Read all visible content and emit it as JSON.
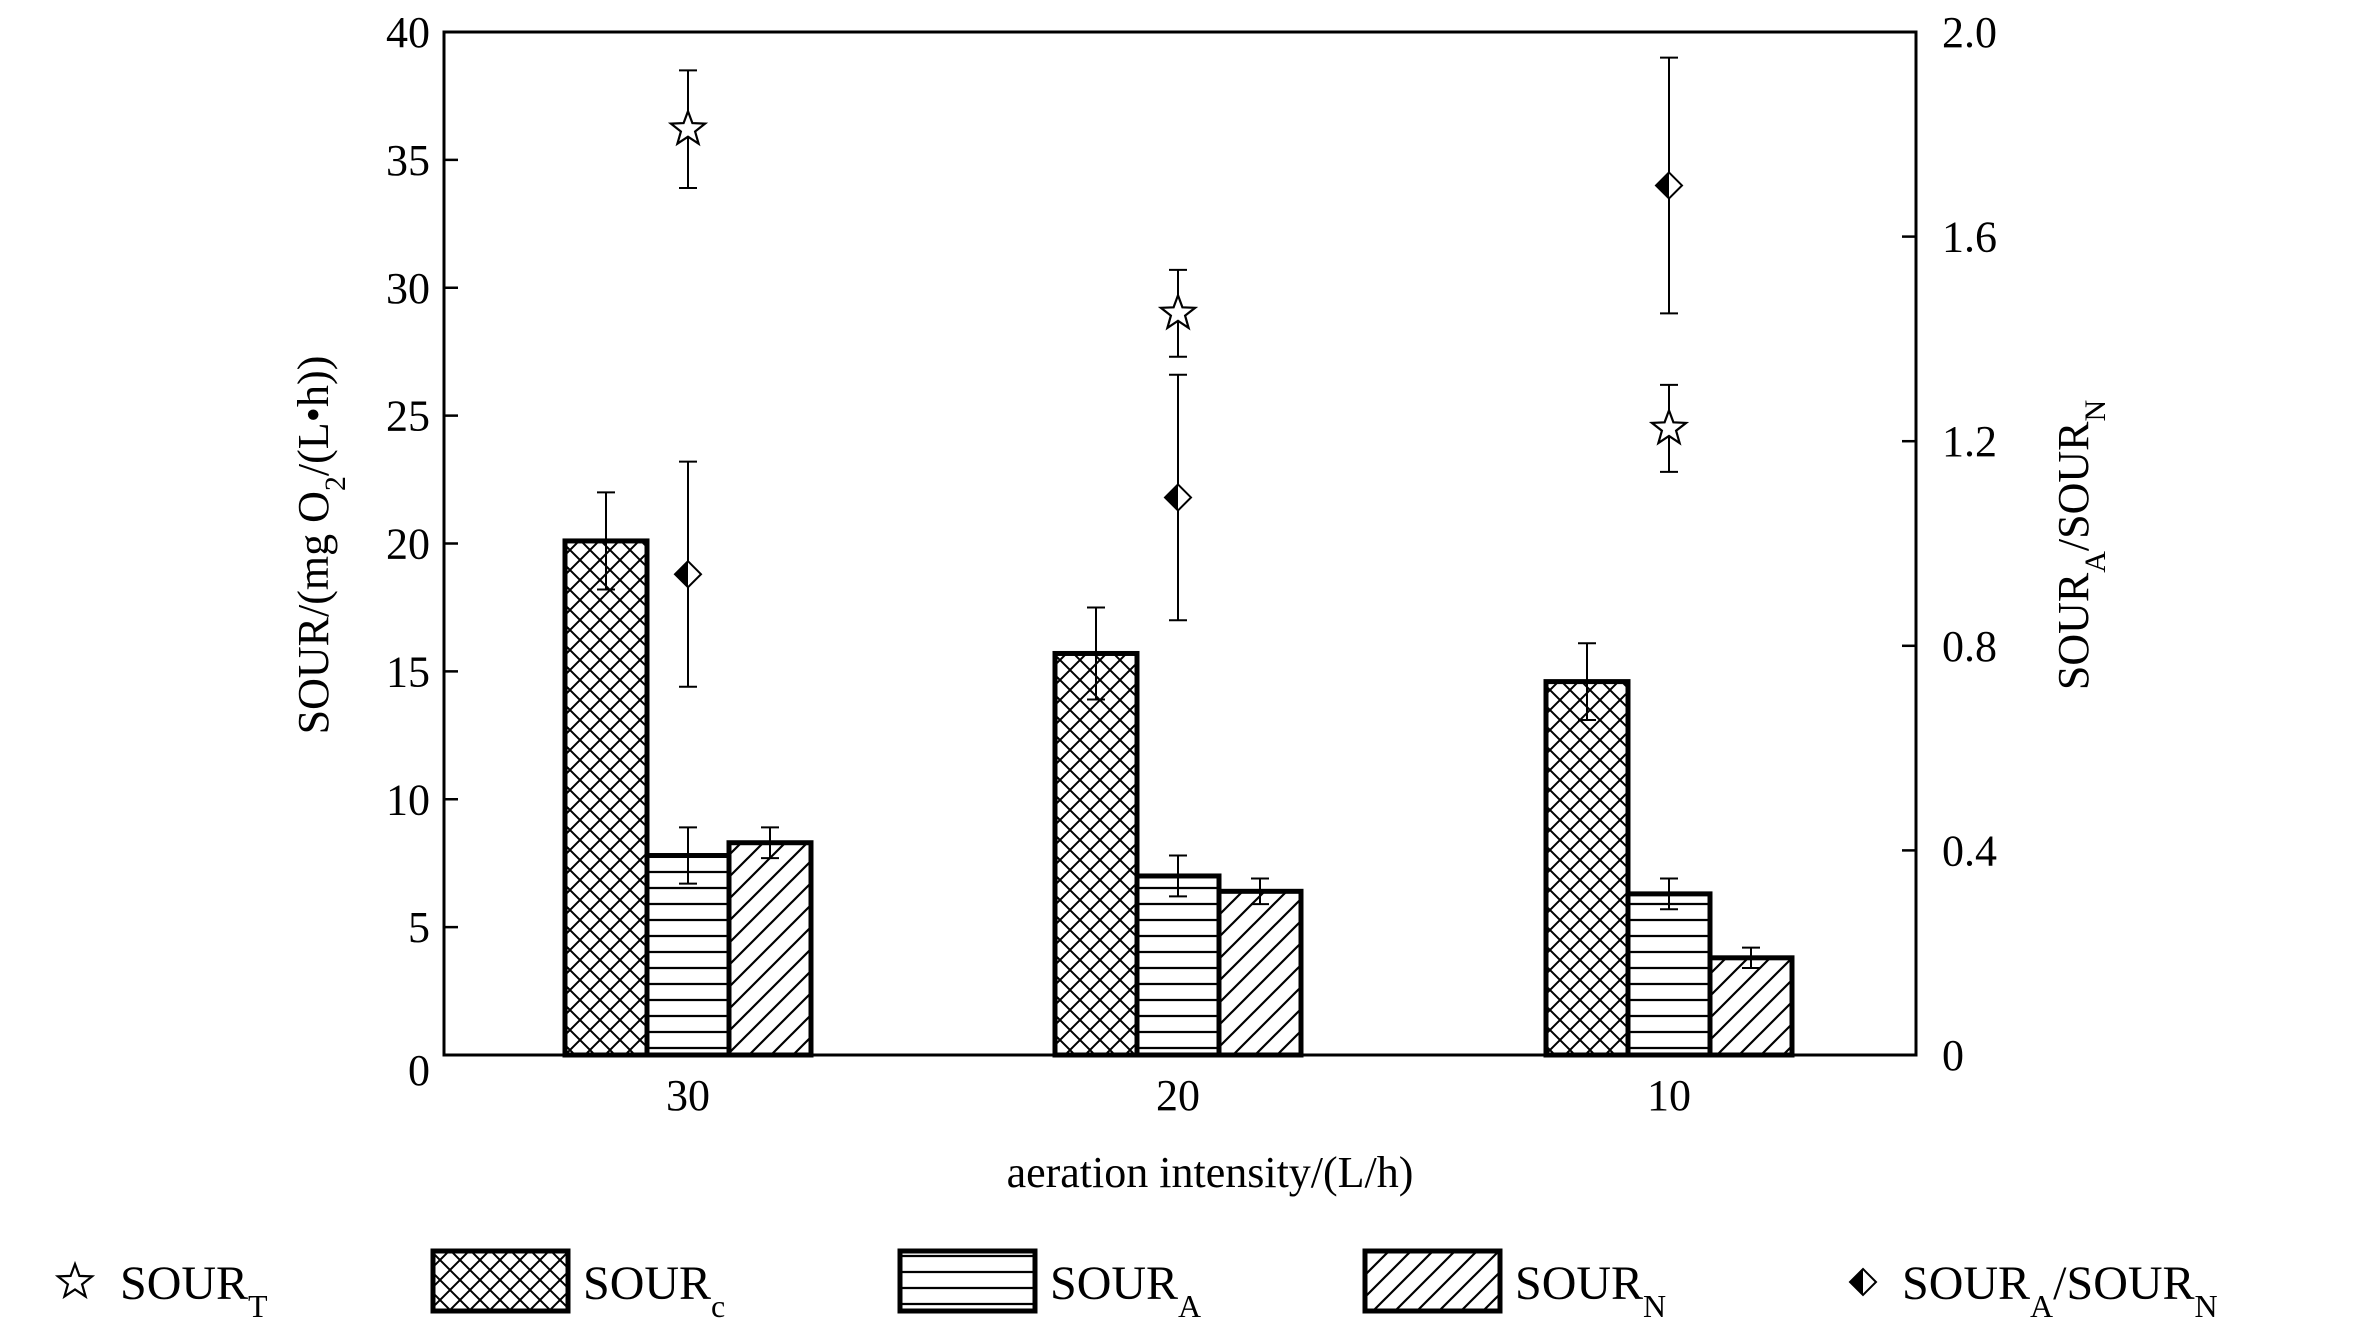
{
  "chart_data": {
    "type": "bar",
    "categories": [
      "30",
      "20",
      "10"
    ],
    "xlabel": "aeration intensity/(L/h)",
    "ylabel": "SOUR/(mg O2/(L•h))",
    "ylabel_parts": {
      "pre": "SOUR/(mg O",
      "sub": "2",
      "post": "/(L•h))"
    },
    "y2label": "SOURA/SOURN",
    "y2label_parts": {
      "a": "SOUR",
      "a_sub": "A",
      "mid": "/SOUR",
      "b_sub": "N"
    },
    "ylim": [
      0,
      40
    ],
    "y2lim": [
      0,
      2.0
    ],
    "yticks": [
      "0",
      "5",
      "10",
      "15",
      "20",
      "25",
      "30",
      "35",
      "40"
    ],
    "y2ticks": [
      "0",
      "0.4",
      "0.8",
      "1.2",
      "1.6",
      "2.0"
    ],
    "bar_series": [
      {
        "name": "SOURc",
        "sub": "c",
        "pattern": "crosshatch",
        "values": [
          20.1,
          15.7,
          14.6
        ],
        "errors": [
          1.9,
          1.8,
          1.5
        ]
      },
      {
        "name": "SOURA",
        "sub": "A",
        "pattern": "horizontal",
        "values": [
          7.8,
          7.0,
          6.3
        ],
        "errors": [
          1.1,
          0.8,
          0.6
        ]
      },
      {
        "name": "SOURN",
        "sub": "N",
        "pattern": "diagonal",
        "values": [
          8.3,
          6.4,
          3.8
        ],
        "errors": [
          0.6,
          0.5,
          0.4
        ]
      }
    ],
    "point_series": [
      {
        "name": "SOURT",
        "sub": "T",
        "marker": "star",
        "axis": "left",
        "values": [
          36.2,
          29.0,
          24.5
        ],
        "errors": [
          2.3,
          1.7,
          1.7
        ]
      },
      {
        "name": "SOURA/SOURN",
        "marker": "diamond",
        "axis": "right",
        "values": [
          0.94,
          1.09,
          1.7
        ],
        "errors": [
          0.22,
          0.24,
          0.25
        ]
      }
    ],
    "legend": {
      "placement": "bottom",
      "items": [
        {
          "marker": "star",
          "label_main": "SOUR",
          "label_sub": "T"
        },
        {
          "marker": "crosshatch",
          "label_main": "SOUR",
          "label_sub": "c"
        },
        {
          "marker": "horizontal",
          "label_main": "SOUR",
          "label_sub": "A"
        },
        {
          "marker": "diagonal",
          "label_main": "SOUR",
          "label_sub": "N"
        },
        {
          "marker": "diamond",
          "label_main": "SOUR",
          "label_sub": "A",
          "label_mid": "/SOUR",
          "label_sub2": "N"
        }
      ]
    },
    "grid": false
  }
}
